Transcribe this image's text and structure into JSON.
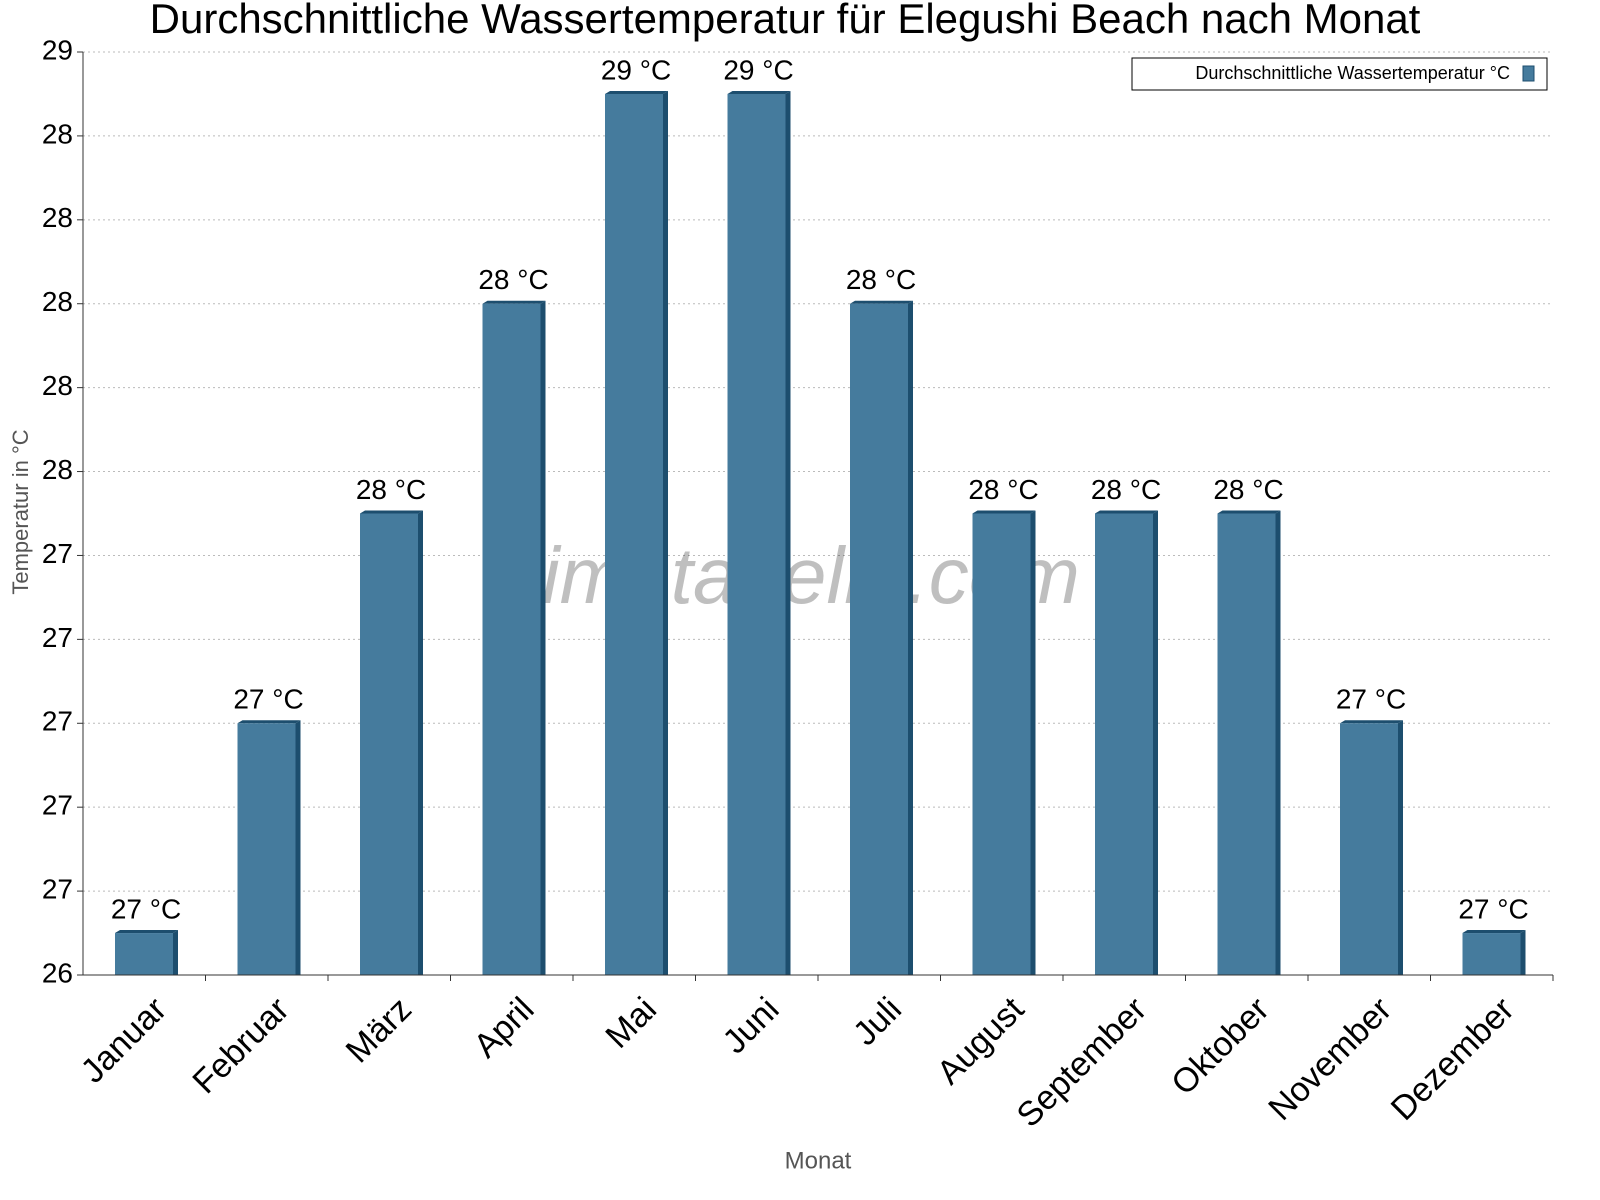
{
  "chart_data": {
    "type": "bar",
    "title": "Durchschnittliche Wassertemperatur für Elegushi Beach nach Monat",
    "x_label": "Monat",
    "y_label": "Temperatur in °C",
    "watermark": "klimatabelle.com",
    "categories": [
      "Januar",
      "Februar",
      "März",
      "April",
      "Mai",
      "Juni",
      "Juli",
      "August",
      "September",
      "Oktober",
      "November",
      "Dezember"
    ],
    "series": [
      {
        "name": "Durchschnittliche Wassertemperatur °C",
        "color": "#457b9d",
        "values": [
          26.5,
          27,
          27.5,
          28,
          28.5,
          28.5,
          28,
          27.5,
          27.5,
          27.5,
          27,
          26.5
        ],
        "value_labels": [
          "27 °C",
          "27 °C",
          "28 °C",
          "28 °C",
          "29 °C",
          "29 °C",
          "28 °C",
          "28 °C",
          "28 °C",
          "28 °C",
          "27 °C",
          "27 °C"
        ]
      }
    ],
    "ylim": [
      26.4,
      28.6
    ],
    "yticks": [
      {
        "value": 26.4,
        "label": "26"
      },
      {
        "value": 26.6,
        "label": "27"
      },
      {
        "value": 26.8,
        "label": "27"
      },
      {
        "value": 27.0,
        "label": "27"
      },
      {
        "value": 27.2,
        "label": "27"
      },
      {
        "value": 27.4,
        "label": "27"
      },
      {
        "value": 27.6,
        "label": "28"
      },
      {
        "value": 27.8,
        "label": "28"
      },
      {
        "value": 28.0,
        "label": "28"
      },
      {
        "value": 28.2,
        "label": "28"
      },
      {
        "value": 28.4,
        "label": "28"
      },
      {
        "value": 28.6,
        "label": "29"
      }
    ],
    "grid": true,
    "legend": "upper right"
  }
}
